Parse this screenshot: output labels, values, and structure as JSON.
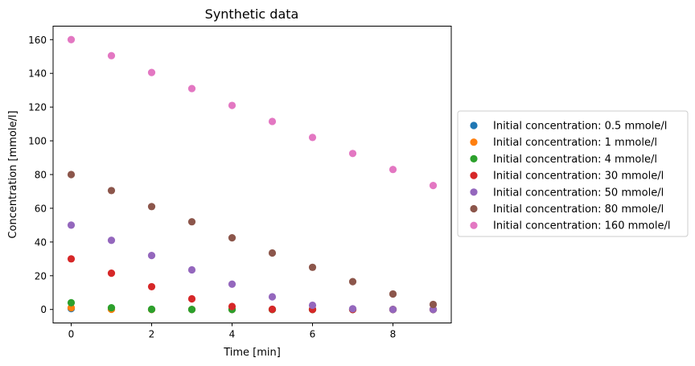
{
  "chart_data": {
    "type": "scatter",
    "title": "Synthetic data",
    "xlabel": "Time [min]",
    "ylabel": "Concentration [mmole/l]",
    "xlim": [
      -0.45,
      9.45
    ],
    "ylim": [
      -8,
      168
    ],
    "xticks": [
      0,
      2,
      4,
      6,
      8
    ],
    "yticks": [
      0,
      20,
      40,
      60,
      80,
      100,
      120,
      140,
      160
    ],
    "grid": false,
    "legend_position": "outside right",
    "x": [
      0,
      1,
      2,
      3,
      4,
      5,
      6,
      7,
      8,
      9
    ],
    "series": [
      {
        "name": "Initial concentration: 0.5 mmole/l",
        "color": "#1f77b4",
        "values": [
          0.5,
          0.2,
          0.05,
          0,
          0,
          0,
          0,
          0,
          0,
          0
        ]
      },
      {
        "name": "Initial concentration: 1 mmole/l",
        "color": "#ff7f0e",
        "values": [
          1,
          0.1,
          0,
          0,
          0,
          0,
          0,
          0,
          0,
          0
        ]
      },
      {
        "name": "Initial concentration: 4 mmole/l",
        "color": "#2ca02c",
        "values": [
          4,
          1,
          0.1,
          0,
          0,
          0,
          0,
          0,
          0,
          0
        ]
      },
      {
        "name": "Initial concentration: 30 mmole/l",
        "color": "#d62728",
        "values": [
          30,
          21.5,
          13.5,
          6.3,
          1.8,
          0.1,
          0,
          0,
          0,
          0
        ]
      },
      {
        "name": "Initial concentration: 50 mmole/l",
        "color": "#9467bd",
        "values": [
          50,
          41,
          32,
          23.5,
          15,
          7.5,
          2.5,
          0.4,
          0,
          0
        ]
      },
      {
        "name": "Initial concentration: 80 mmole/l",
        "color": "#8c564b",
        "values": [
          80,
          70.5,
          61,
          52,
          42.5,
          33.5,
          25,
          16.5,
          9.2,
          3
        ]
      },
      {
        "name": "Initial concentration: 160 mmole/l",
        "color": "#e377c2",
        "values": [
          160,
          150.5,
          140.5,
          131,
          121,
          111.5,
          102,
          92.5,
          83,
          73.5
        ]
      }
    ]
  }
}
